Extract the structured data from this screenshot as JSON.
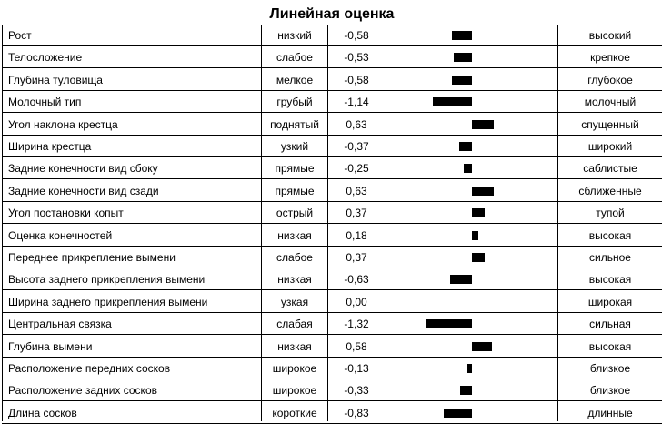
{
  "chart_data": {
    "type": "bar",
    "title": "Линейная оценка",
    "xlim": [
      -1.5,
      1.5
    ],
    "rows": [
      {
        "trait": "Рост",
        "low": "низкий",
        "value": -0.58,
        "value_label": "-0,58",
        "high": "высокий"
      },
      {
        "trait": "Телосложение",
        "low": "слабое",
        "value": -0.53,
        "value_label": "-0,53",
        "high": "крепкое"
      },
      {
        "trait": "Глубина туловища",
        "low": "мелкое",
        "value": -0.58,
        "value_label": "-0,58",
        "high": "глубокое"
      },
      {
        "trait": "Молочный тип",
        "low": "грубый",
        "value": -1.14,
        "value_label": "-1,14",
        "high": "молочный"
      },
      {
        "trait": "Угол наклона крестца",
        "low": "поднятый",
        "value": 0.63,
        "value_label": "0,63",
        "high": "спущенный"
      },
      {
        "trait": "Ширина крестца",
        "low": "узкий",
        "value": -0.37,
        "value_label": "-0,37",
        "high": "широкий"
      },
      {
        "trait": "Задние конечности вид сбоку",
        "low": "прямые",
        "value": -0.25,
        "value_label": "-0,25",
        "high": "саблистые"
      },
      {
        "trait": "Задние конечности вид сзади",
        "low": "прямые",
        "value": 0.63,
        "value_label": "0,63",
        "high": "сближенные"
      },
      {
        "trait": "Угол постановки копыт",
        "low": "острый",
        "value": 0.37,
        "value_label": "0,37",
        "high": "тупой"
      },
      {
        "trait": "Оценка конечностей",
        "low": "низкая",
        "value": 0.18,
        "value_label": "0,18",
        "high": "высокая"
      },
      {
        "trait": "Переднее прикрепление вымени",
        "low": "слабое",
        "value": 0.37,
        "value_label": "0,37",
        "high": "сильное"
      },
      {
        "trait": "Высота заднего прикрепления вымени",
        "low": "низкая",
        "value": -0.63,
        "value_label": "-0,63",
        "high": "высокая"
      },
      {
        "trait": "Ширина заднего прикрепления вымени",
        "low": "узкая",
        "value": 0.0,
        "value_label": "0,00",
        "high": "широкая"
      },
      {
        "trait": "Центральная связка",
        "low": "слабая",
        "value": -1.32,
        "value_label": "-1,32",
        "high": "сильная"
      },
      {
        "trait": "Глубина вымени",
        "low": "низкая",
        "value": 0.58,
        "value_label": "0,58",
        "high": "высокая"
      },
      {
        "trait": "Расположение передних сосков",
        "low": "широкое",
        "value": -0.13,
        "value_label": "-0,13",
        "high": "близкое"
      },
      {
        "trait": "Расположение задних сосков",
        "low": "широкое",
        "value": -0.33,
        "value_label": "-0,33",
        "high": "близкое"
      },
      {
        "trait": "Длина сосков",
        "low": "короткие",
        "value": -0.83,
        "value_label": "-0,83",
        "high": "длинные"
      }
    ]
  }
}
